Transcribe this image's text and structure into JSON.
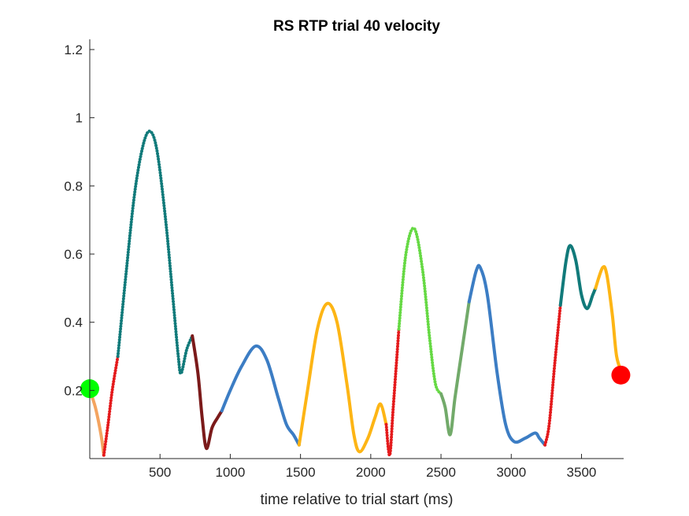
{
  "chart_data": {
    "type": "line",
    "title": "RS  RTP trial 40 velocity",
    "xlabel": "time relative to trial start (ms)",
    "ylabel": "",
    "xlim": [
      0,
      3800
    ],
    "ylim": [
      0,
      1.23
    ],
    "xticks": [
      500,
      1000,
      1500,
      2000,
      2500,
      3000,
      3500
    ],
    "yticks": [
      0.2,
      0.4,
      0.6,
      0.8,
      1,
      1.2
    ],
    "ytick_labels": [
      "0.2",
      "0.4",
      "0.6",
      "0.8",
      "1",
      "1.2"
    ],
    "grid": false,
    "series": [
      {
        "color": "#F4A460",
        "style": "solid",
        "points": [
          [
            0,
            0.2
          ],
          [
            40,
            0.15
          ],
          [
            80,
            0.07
          ],
          [
            100,
            0.01
          ]
        ]
      },
      {
        "color": "#E41A1C",
        "style": "dotted",
        "points": [
          [
            100,
            0.01
          ],
          [
            130,
            0.1
          ],
          [
            160,
            0.2
          ],
          [
            200,
            0.3
          ]
        ]
      },
      {
        "color": "#117A7A",
        "style": "dotted",
        "points": [
          [
            200,
            0.3
          ],
          [
            260,
            0.55
          ],
          [
            320,
            0.78
          ],
          [
            380,
            0.92
          ],
          [
            430,
            0.96
          ],
          [
            480,
            0.9
          ],
          [
            540,
            0.7
          ],
          [
            590,
            0.48
          ],
          [
            630,
            0.3
          ],
          [
            650,
            0.25
          ],
          [
            690,
            0.32
          ],
          [
            730,
            0.36
          ]
        ]
      },
      {
        "color": "#7B1A1A",
        "style": "solid",
        "points": [
          [
            730,
            0.36
          ],
          [
            770,
            0.25
          ],
          [
            800,
            0.12
          ],
          [
            830,
            0.03
          ],
          [
            870,
            0.09
          ],
          [
            910,
            0.12
          ],
          [
            940,
            0.14
          ]
        ]
      },
      {
        "color": "#3C7DC4",
        "style": "solid",
        "points": [
          [
            940,
            0.14
          ],
          [
            1000,
            0.2
          ],
          [
            1080,
            0.27
          ],
          [
            1180,
            0.33
          ],
          [
            1260,
            0.29
          ],
          [
            1340,
            0.18
          ],
          [
            1400,
            0.1
          ],
          [
            1450,
            0.07
          ],
          [
            1490,
            0.04
          ]
        ]
      },
      {
        "color": "#FDB515",
        "style": "solid",
        "points": [
          [
            1490,
            0.04
          ],
          [
            1550,
            0.2
          ],
          [
            1620,
            0.38
          ],
          [
            1690,
            0.455
          ],
          [
            1760,
            0.4
          ],
          [
            1830,
            0.22
          ],
          [
            1880,
            0.07
          ],
          [
            1920,
            0.02
          ],
          [
            1980,
            0.06
          ],
          [
            2030,
            0.12
          ],
          [
            2070,
            0.16
          ],
          [
            2110,
            0.1
          ]
        ]
      },
      {
        "color": "#E41A1C",
        "style": "dotted",
        "points": [
          [
            2110,
            0.1
          ],
          [
            2135,
            0.01
          ],
          [
            2160,
            0.15
          ],
          [
            2200,
            0.38
          ]
        ]
      },
      {
        "color": "#66D944",
        "style": "dotted",
        "points": [
          [
            2200,
            0.38
          ],
          [
            2250,
            0.6
          ],
          [
            2310,
            0.675
          ],
          [
            2370,
            0.55
          ],
          [
            2420,
            0.35
          ],
          [
            2460,
            0.22
          ],
          [
            2500,
            0.19
          ]
        ]
      },
      {
        "color": "#72AA6A",
        "style": "solid",
        "points": [
          [
            2500,
            0.19
          ],
          [
            2530,
            0.15
          ],
          [
            2565,
            0.07
          ],
          [
            2600,
            0.18
          ],
          [
            2650,
            0.32
          ],
          [
            2700,
            0.46
          ]
        ]
      },
      {
        "color": "#3C7DC4",
        "style": "solid",
        "points": [
          [
            2700,
            0.46
          ],
          [
            2750,
            0.55
          ],
          [
            2780,
            0.56
          ],
          [
            2830,
            0.48
          ],
          [
            2900,
            0.25
          ],
          [
            2960,
            0.1
          ],
          [
            3020,
            0.05
          ],
          [
            3100,
            0.06
          ],
          [
            3170,
            0.075
          ],
          [
            3200,
            0.06
          ],
          [
            3240,
            0.04
          ]
        ]
      },
      {
        "color": "#E41A1C",
        "style": "dotted",
        "points": [
          [
            3240,
            0.04
          ],
          [
            3270,
            0.1
          ],
          [
            3310,
            0.28
          ],
          [
            3350,
            0.45
          ]
        ]
      },
      {
        "color": "#117A7A",
        "style": "solid",
        "points": [
          [
            3350,
            0.45
          ],
          [
            3390,
            0.58
          ],
          [
            3420,
            0.625
          ],
          [
            3460,
            0.58
          ],
          [
            3500,
            0.48
          ],
          [
            3540,
            0.44
          ],
          [
            3580,
            0.48
          ],
          [
            3600,
            0.5
          ]
        ]
      },
      {
        "color": "#FDB515",
        "style": "solid",
        "points": [
          [
            3600,
            0.5
          ],
          [
            3650,
            0.56
          ],
          [
            3680,
            0.54
          ],
          [
            3720,
            0.42
          ],
          [
            3750,
            0.3
          ],
          [
            3790,
            0.25
          ]
        ]
      }
    ],
    "markers": [
      {
        "x": 0,
        "y": 0.205,
        "color": "#00FF00"
      },
      {
        "x": 3780,
        "y": 0.245,
        "color": "#FF0000"
      }
    ]
  }
}
